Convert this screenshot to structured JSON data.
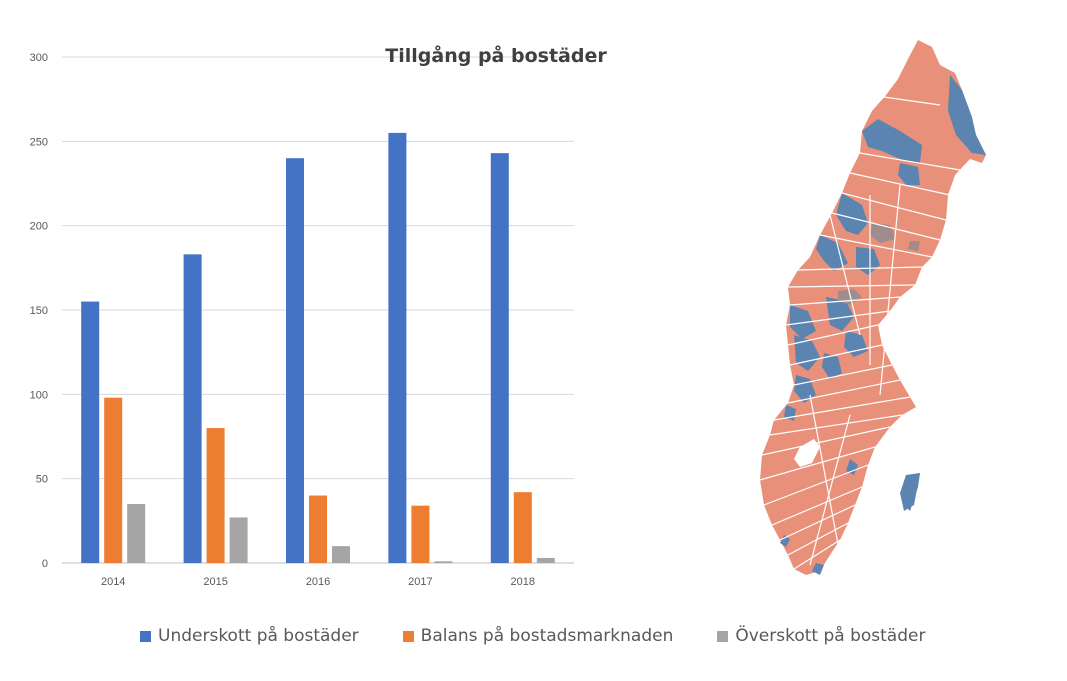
{
  "chart_data": {
    "type": "bar",
    "title": "Tillgång på bostäder",
    "categories": [
      "2014",
      "2015",
      "2016",
      "2017",
      "2018"
    ],
    "series": [
      {
        "name": "Underskott på bostäder",
        "color": "#4472c4",
        "values": [
          155,
          183,
          240,
          255,
          243
        ]
      },
      {
        "name": "Balans på bostadsmarknaden",
        "color": "#ed7d31",
        "values": [
          98,
          80,
          40,
          34,
          42
        ]
      },
      {
        "name": "Överskott på bostäder",
        "color": "#a5a5a5",
        "values": [
          35,
          27,
          10,
          1,
          3
        ]
      }
    ],
    "ylim": [
      0,
      300
    ],
    "yticks": [
      "0",
      "50",
      "100",
      "150",
      "200",
      "250",
      "300"
    ],
    "grid": true,
    "legend_position": "bottom"
  },
  "map": {
    "icon": "sweden-municipality-map",
    "colors": {
      "deficit": "#5b84b1",
      "balance": "#e8907a",
      "surplus": "#a08c8c"
    }
  }
}
